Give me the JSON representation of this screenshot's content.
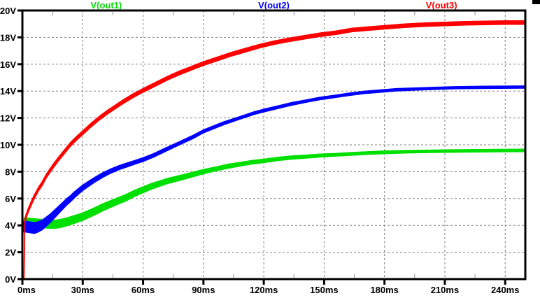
{
  "app": {
    "title": "waveform viewer plot pane"
  },
  "colors": {
    "background": "#ffffff",
    "plot_border": "#000000",
    "grid": "#808080",
    "minor_tick": "#909090",
    "tick_text": "#000000"
  },
  "legend": {
    "position": "top",
    "items": [
      {
        "label": "V(out1)",
        "color": "#00e000"
      },
      {
        "label": "V(out2)",
        "color": "#0000ff"
      },
      {
        "label": "V(out3)",
        "color": "#ff0000"
      }
    ]
  },
  "chart_data": {
    "type": "line",
    "title": "",
    "xlabel": "",
    "ylabel": "",
    "x_unit": "ms",
    "y_unit": "V",
    "xlim": [
      0,
      250
    ],
    "ylim": [
      0,
      20
    ],
    "grid": true,
    "x_major_ticks": {
      "values": [
        0,
        30,
        60,
        90,
        120,
        150,
        180,
        210,
        240
      ],
      "labels": [
        "0ms",
        "30ms",
        "60ms",
        "90ms",
        "120ms",
        "150ms",
        "180ms",
        "210ms",
        "240ms"
      ]
    },
    "x_minor_tick_step": 15,
    "y_major_ticks": {
      "values": [
        0,
        2,
        4,
        6,
        8,
        10,
        12,
        14,
        16,
        18,
        20
      ],
      "labels": [
        "0V",
        "2V",
        "4V",
        "6V",
        "8V",
        "10V",
        "12V",
        "14V",
        "16V",
        "18V",
        "20V"
      ]
    },
    "series": [
      {
        "name": "V(out1)",
        "color": "#00e000",
        "points_format": [
          "t_ms",
          "volts",
          "ripple_halfwidth_volts"
        ],
        "points": [
          [
            0.8,
            4.25,
            0.3
          ],
          [
            2,
            4.25,
            0.3
          ],
          [
            4,
            4.22,
            0.3
          ],
          [
            6,
            4.2,
            0.3
          ],
          [
            8,
            4.17,
            0.3
          ],
          [
            10,
            4.13,
            0.3
          ],
          [
            12,
            4.1,
            0.3
          ],
          [
            14,
            4.08,
            0.3
          ],
          [
            16,
            4.08,
            0.3
          ],
          [
            18,
            4.12,
            0.3
          ],
          [
            20,
            4.18,
            0.3
          ],
          [
            22,
            4.26,
            0.29
          ],
          [
            24,
            4.35,
            0.29
          ],
          [
            26,
            4.45,
            0.29
          ],
          [
            28,
            4.55,
            0.28
          ],
          [
            30,
            4.65,
            0.28
          ],
          [
            33,
            4.85,
            0.27
          ],
          [
            36,
            5.05,
            0.27
          ],
          [
            40,
            5.35,
            0.26
          ],
          [
            44,
            5.6,
            0.25
          ],
          [
            48,
            5.85,
            0.24
          ],
          [
            52,
            6.1,
            0.24
          ],
          [
            56,
            6.4,
            0.23
          ],
          [
            60,
            6.65,
            0.22
          ],
          [
            64,
            6.9,
            0.21
          ],
          [
            68,
            7.1,
            0.2
          ],
          [
            72,
            7.3,
            0.19
          ],
          [
            76,
            7.45,
            0.19
          ],
          [
            80,
            7.6,
            0.18
          ],
          [
            85,
            7.8,
            0.17
          ],
          [
            90,
            8.0,
            0.16
          ],
          [
            96,
            8.2,
            0.15
          ],
          [
            102,
            8.4,
            0.15
          ],
          [
            108,
            8.55,
            0.14
          ],
          [
            114,
            8.7,
            0.13
          ],
          [
            120,
            8.8,
            0.13
          ],
          [
            127,
            8.95,
            0.12
          ],
          [
            134,
            9.05,
            0.12
          ],
          [
            141,
            9.12,
            0.11
          ],
          [
            148,
            9.2,
            0.11
          ],
          [
            155,
            9.25,
            0.1
          ],
          [
            163,
            9.32,
            0.1
          ],
          [
            171,
            9.38,
            0.1
          ],
          [
            180,
            9.44,
            0.1
          ],
          [
            190,
            9.48,
            0.09
          ],
          [
            200,
            9.51,
            0.09
          ],
          [
            210,
            9.53,
            0.09
          ],
          [
            222,
            9.55,
            0.09
          ],
          [
            236,
            9.57,
            0.09
          ],
          [
            250,
            9.58,
            0.09
          ]
        ]
      },
      {
        "name": "V(out2)",
        "color": "#0000ff",
        "points_format": [
          "t_ms",
          "volts",
          "ripple_halfwidth_volts"
        ],
        "points": [
          [
            0.8,
            3.9,
            0.4
          ],
          [
            2,
            3.9,
            0.4
          ],
          [
            4,
            3.85,
            0.4
          ],
          [
            6,
            3.8,
            0.4
          ],
          [
            8,
            3.9,
            0.38
          ],
          [
            10,
            4.05,
            0.36
          ],
          [
            12,
            4.3,
            0.33
          ],
          [
            14,
            4.55,
            0.31
          ],
          [
            16,
            4.85,
            0.29
          ],
          [
            18,
            5.15,
            0.27
          ],
          [
            20,
            5.45,
            0.25
          ],
          [
            22,
            5.75,
            0.24
          ],
          [
            24,
            6.0,
            0.23
          ],
          [
            26,
            6.3,
            0.22
          ],
          [
            28,
            6.55,
            0.21
          ],
          [
            30,
            6.8,
            0.2
          ],
          [
            33,
            7.1,
            0.19
          ],
          [
            36,
            7.4,
            0.18
          ],
          [
            40,
            7.75,
            0.17
          ],
          [
            44,
            8.05,
            0.16
          ],
          [
            48,
            8.3,
            0.15
          ],
          [
            52,
            8.5,
            0.15
          ],
          [
            56,
            8.7,
            0.14
          ],
          [
            60,
            8.9,
            0.14
          ],
          [
            65,
            9.2,
            0.13
          ],
          [
            70,
            9.55,
            0.13
          ],
          [
            75,
            9.9,
            0.12
          ],
          [
            80,
            10.25,
            0.12
          ],
          [
            85,
            10.6,
            0.12
          ],
          [
            90,
            11.0,
            0.11
          ],
          [
            95,
            11.3,
            0.11
          ],
          [
            100,
            11.6,
            0.11
          ],
          [
            105,
            11.85,
            0.1
          ],
          [
            110,
            12.1,
            0.1
          ],
          [
            115,
            12.35,
            0.1
          ],
          [
            120,
            12.55,
            0.1
          ],
          [
            127,
            12.8,
            0.1
          ],
          [
            134,
            13.05,
            0.1
          ],
          [
            141,
            13.25,
            0.09
          ],
          [
            148,
            13.45,
            0.09
          ],
          [
            155,
            13.6,
            0.09
          ],
          [
            162,
            13.75,
            0.09
          ],
          [
            170,
            13.9,
            0.09
          ],
          [
            178,
            14.0,
            0.09
          ],
          [
            186,
            14.1,
            0.09
          ],
          [
            195,
            14.15,
            0.08
          ],
          [
            205,
            14.2,
            0.08
          ],
          [
            215,
            14.25,
            0.08
          ],
          [
            230,
            14.28,
            0.08
          ],
          [
            250,
            14.3,
            0.08
          ]
        ]
      },
      {
        "name": "V(out3)",
        "color": "#ff0000",
        "points_format": [
          "t_ms",
          "volts",
          "ripple_halfwidth_volts"
        ],
        "points": [
          [
            0.4,
            0.05,
            0.05
          ],
          [
            0.8,
            0.15,
            0.15
          ],
          [
            1.0,
            2.2,
            0.6
          ],
          [
            1.2,
            4.3,
            0.2
          ],
          [
            2,
            4.75,
            0.14
          ],
          [
            3,
            5.15,
            0.14
          ],
          [
            4,
            5.5,
            0.14
          ],
          [
            5,
            5.85,
            0.14
          ],
          [
            6,
            6.15,
            0.14
          ],
          [
            8,
            6.7,
            0.14
          ],
          [
            10,
            7.15,
            0.14
          ],
          [
            12,
            7.7,
            0.14
          ],
          [
            15,
            8.35,
            0.14
          ],
          [
            18,
            8.95,
            0.14
          ],
          [
            21,
            9.5,
            0.14
          ],
          [
            24,
            10.05,
            0.14
          ],
          [
            27,
            10.5,
            0.14
          ],
          [
            30,
            10.9,
            0.14
          ],
          [
            34,
            11.45,
            0.14
          ],
          [
            38,
            11.95,
            0.14
          ],
          [
            42,
            12.4,
            0.14
          ],
          [
            46,
            12.8,
            0.14
          ],
          [
            50,
            13.2,
            0.14
          ],
          [
            55,
            13.65,
            0.14
          ],
          [
            60,
            14.05,
            0.14
          ],
          [
            66,
            14.5,
            0.14
          ],
          [
            72,
            14.95,
            0.14
          ],
          [
            78,
            15.35,
            0.14
          ],
          [
            84,
            15.7,
            0.14
          ],
          [
            90,
            16.05,
            0.14
          ],
          [
            97,
            16.4,
            0.14
          ],
          [
            104,
            16.75,
            0.14
          ],
          [
            111,
            17.05,
            0.14
          ],
          [
            118,
            17.35,
            0.13
          ],
          [
            125,
            17.6,
            0.13
          ],
          [
            132,
            17.8,
            0.13
          ],
          [
            140,
            18.0,
            0.13
          ],
          [
            148,
            18.2,
            0.13
          ],
          [
            156,
            18.35,
            0.13
          ],
          [
            164,
            18.55,
            0.13
          ],
          [
            172,
            18.65,
            0.13
          ],
          [
            180,
            18.75,
            0.13
          ],
          [
            190,
            18.87,
            0.13
          ],
          [
            200,
            18.95,
            0.13
          ],
          [
            210,
            19.0,
            0.13
          ],
          [
            220,
            19.05,
            0.13
          ],
          [
            230,
            19.08,
            0.13
          ],
          [
            240,
            19.1,
            0.13
          ],
          [
            250,
            19.1,
            0.13
          ]
        ]
      }
    ]
  }
}
